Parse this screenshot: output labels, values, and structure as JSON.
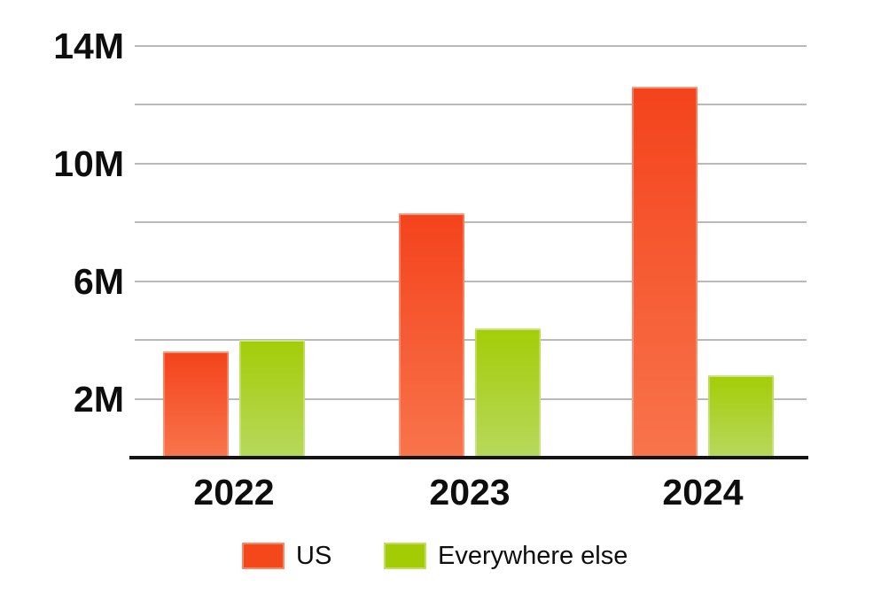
{
  "chart_data": {
    "type": "bar",
    "title": "",
    "xlabel": "",
    "ylabel": "",
    "unit": "M",
    "categories": [
      "2022",
      "2023",
      "2024"
    ],
    "series": [
      {
        "name": "US",
        "values": [
          3.6,
          8.3,
          12.6
        ],
        "color_top": "#f4431c",
        "color_bottom": "#f8744b",
        "legend_color": "#f4481b"
      },
      {
        "name": "Everywhere else",
        "values": [
          4.0,
          4.4,
          2.8
        ],
        "color_top": "#a4cd08",
        "color_bottom": "#b7d85c",
        "legend_color": "#a3cc05"
      }
    ],
    "ylim": [
      0,
      14
    ],
    "gridline_step": 2,
    "y_ticks": [
      {
        "label": "14M",
        "value": 14
      },
      {
        "label": "10M",
        "value": 10
      },
      {
        "label": "6M",
        "value": 6
      },
      {
        "label": "2M",
        "value": 2
      }
    ],
    "grid": true,
    "legend_position": "bottom",
    "colors": {
      "background": "#ffffff",
      "gridline": "#b9b9b9",
      "axis_line": "#141414",
      "text": "#0e0e0e"
    }
  }
}
